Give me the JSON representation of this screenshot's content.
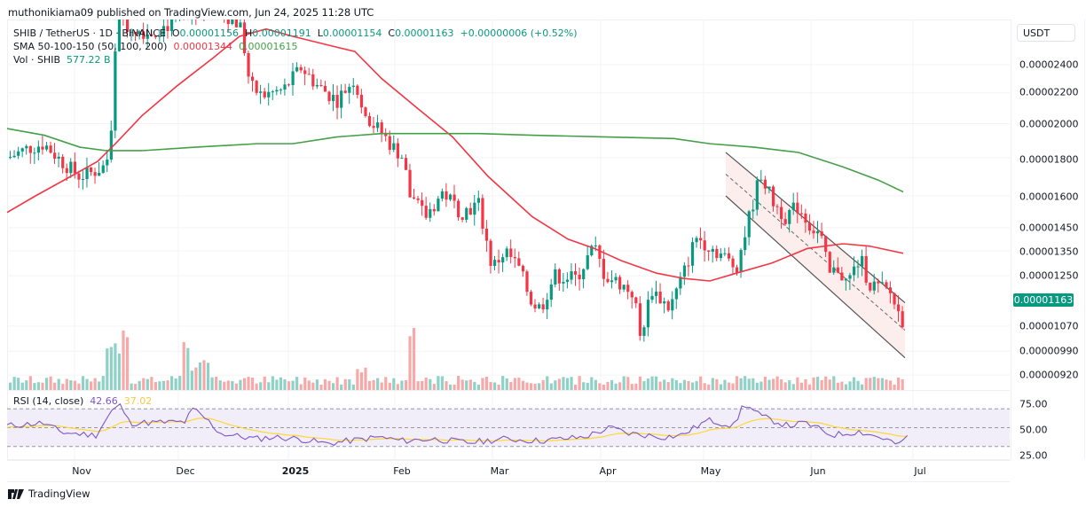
{
  "attribution": "muthonikiama09 published on TradingView.com, Jun 24, 2025 11:28 UTC",
  "legend": {
    "symbol": "SHIB / TetherUS · 1D · BINANCE",
    "open_label": "O",
    "open": "0.00001156",
    "high_label": "H",
    "high": "0.00001191",
    "low_label": "L",
    "low": "0.00001154",
    "close_label": "C",
    "close": "0.00001163",
    "change": "+0.00000006 (+0.52%)",
    "sma_label": "SMA 50-100-150 (50, 100, 200)",
    "sma1_value": "0.00001344",
    "sma2_value": "0.00001615",
    "vol_label": "Vol · SHIB",
    "vol_value": "577.22 B"
  },
  "rsi": {
    "label": "RSI (14, close)",
    "value": "42.66",
    "ma_value": "37.02",
    "axis": [
      "75.00",
      "50.00",
      "25.00"
    ]
  },
  "axis": {
    "currency": "USDT",
    "price_labels": [
      "0.00002400",
      "0.00002200",
      "0.00002000",
      "0.00001800",
      "0.00001600",
      "0.00001450",
      "0.00001350",
      "0.00001250",
      "0.00001070",
      "0.00000990",
      "0.00000920"
    ],
    "last_price": "0.00001163",
    "time_labels": [
      "Nov",
      "Dec",
      "2025",
      "Feb",
      "Mar",
      "Apr",
      "May",
      "Jun",
      "Jul"
    ]
  },
  "branding": "TradingView",
  "colors": {
    "up": "#089981",
    "down": "#f23645",
    "sma50": "#f23645",
    "sma200": "#43a047",
    "rsi": "#7e57c2",
    "rsi_ma": "#fdd835",
    "vol_up": "#8fd1c6",
    "vol_down": "#f7a9a9",
    "channel_fill": "#fdeeee"
  },
  "chart_data": {
    "type": "candlestick",
    "title": "SHIB / TetherUS · 1D · BINANCE",
    "xlabel": "",
    "ylabel": "USDT",
    "y_scale": "log",
    "ylim": [
      9e-06,
      2.6e-05
    ],
    "x_ticks": [
      "Nov",
      "Dec",
      "2025",
      "Feb",
      "Mar",
      "Apr",
      "May",
      "Jun",
      "Jul"
    ],
    "y_ticks": [
      2.4e-05,
      2.2e-05,
      2e-05,
      1.8e-05,
      1.6e-05,
      1.45e-05,
      1.35e-05,
      1.25e-05,
      1.07e-05,
      9.9e-06,
      9.2e-06
    ],
    "last": {
      "open": 1.156e-05,
      "high": 1.191e-05,
      "low": 1.154e-05,
      "close": 1.163e-05,
      "change": 6e-08,
      "change_pct": 0.52
    },
    "series": [
      {
        "name": "SMA 50",
        "last": 1.344e-05,
        "points_approx": [
          [
            "Oct-15",
            1.52e-05
          ],
          [
            "Nov-15",
            1.78e-05
          ],
          [
            "Dec-15",
            2.4e-05
          ],
          [
            "Jan-05",
            2.46e-05
          ],
          [
            "Jan-20",
            2.32e-05
          ],
          [
            "Feb-15",
            1.96e-05
          ],
          [
            "Mar-10",
            1.6e-05
          ],
          [
            "Apr-01",
            1.35e-05
          ],
          [
            "Apr-25",
            1.23e-05
          ],
          [
            "May-15",
            1.28e-05
          ],
          [
            "Jun-05",
            1.36e-05
          ],
          [
            "Jun-24",
            1.34e-05
          ]
        ]
      },
      {
        "name": "SMA 200",
        "last": 1.615e-05,
        "points_approx": [
          [
            "Oct-15",
            1.97e-05
          ],
          [
            "Nov-10",
            1.84e-05
          ],
          [
            "Dec-15",
            1.87e-05
          ],
          [
            "Jan-20",
            1.93e-05
          ],
          [
            "Feb-15",
            1.94e-05
          ],
          [
            "Apr-01",
            1.92e-05
          ],
          [
            "May-10",
            1.86e-05
          ],
          [
            "Jun-05",
            1.81e-05
          ],
          [
            "Jun-24",
            1.62e-05
          ]
        ]
      },
      {
        "name": "Volume",
        "last": "577.22 B"
      },
      {
        "name": "RSI (14)",
        "last": 42.66,
        "range": [
          25,
          75
        ]
      },
      {
        "name": "RSI MA",
        "last": 37.02
      }
    ],
    "annotations": [
      {
        "type": "descending parallel channel",
        "from": "May-08",
        "to": "Jun-24",
        "upper_start": 1.83e-05,
        "upper_end": 1.15e-05,
        "lower_start": 1.6e-05,
        "lower_end": 9.7e-06
      }
    ]
  }
}
